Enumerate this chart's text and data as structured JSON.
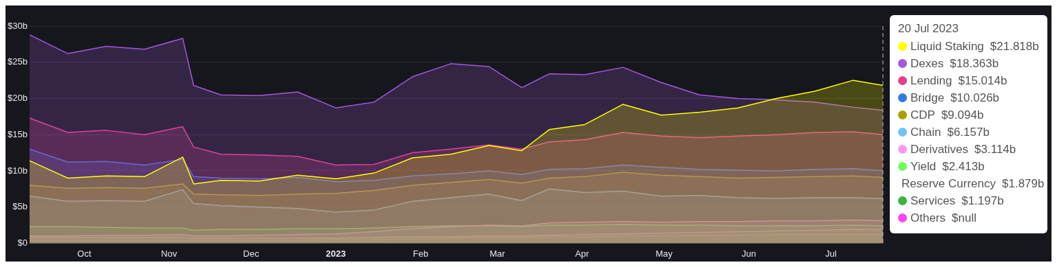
{
  "chart_data": {
    "type": "area",
    "legend_title": "20 Jul 2023",
    "legend": "right",
    "grid": "y",
    "marker": "none",
    "line_style": "solid",
    "x": [
      "2022-09-11",
      "2022-09-25",
      "2022-10-09",
      "2022-10-23",
      "2022-11-06",
      "2022-11-10",
      "2022-11-20",
      "2022-12-04",
      "2022-12-18",
      "2023-01-01",
      "2023-01-15",
      "2023-01-29",
      "2023-02-12",
      "2023-02-26",
      "2023-03-10",
      "2023-03-20",
      "2023-04-02",
      "2023-04-16",
      "2023-04-30",
      "2023-05-14",
      "2023-05-28",
      "2023-06-11",
      "2023-06-25",
      "2023-07-09",
      "2023-07-20"
    ],
    "xlim": [
      "2022-09-11",
      "2023-07-20"
    ],
    "xticks": [
      {
        "value": "2022-10-01",
        "label": "Oct"
      },
      {
        "value": "2022-11-01",
        "label": "Nov"
      },
      {
        "value": "2022-12-01",
        "label": "Dec"
      },
      {
        "value": "2023-01-01",
        "label": "2023"
      },
      {
        "value": "2023-02-01",
        "label": "Feb"
      },
      {
        "value": "2023-03-01",
        "label": "Mar"
      },
      {
        "value": "2023-04-01",
        "label": "Apr"
      },
      {
        "value": "2023-05-01",
        "label": "May"
      },
      {
        "value": "2023-06-01",
        "label": "Jun"
      },
      {
        "value": "2023-07-01",
        "label": "Jul"
      }
    ],
    "ylim": [
      0,
      30
    ],
    "yticks": [
      {
        "value": 0,
        "label": "$0"
      },
      {
        "value": 5,
        "label": "$5b"
      },
      {
        "value": 10,
        "label": "$10b"
      },
      {
        "value": 15,
        "label": "$15b"
      },
      {
        "value": 20,
        "label": "$20b"
      },
      {
        "value": 25,
        "label": "$25b"
      },
      {
        "value": 30,
        "label": "$30b"
      }
    ],
    "annotations": [
      "$21.818b",
      "$18.363b",
      "$15.014b",
      "$10.026b",
      "$9.094b",
      "$6.157b",
      "$3.114b",
      "$2.413b",
      "$1.879b",
      "$1.197b",
      "$null"
    ],
    "ref_lines": [
      {
        "axis": "x",
        "value": "2023-07-20",
        "color": "#bbbbbb",
        "line_style": "dashed"
      }
    ],
    "series": [
      {
        "name": "Liquid Staking",
        "color": "#ffff00",
        "values": [
          11.4,
          9.0,
          9.3,
          9.2,
          11.9,
          8.2,
          8.7,
          8.6,
          9.4,
          8.9,
          9.7,
          11.8,
          12.3,
          13.5,
          12.8,
          15.7,
          16.4,
          19.2,
          17.7,
          18.1,
          18.7,
          20.0,
          21.0,
          22.5,
          21.818
        ]
      },
      {
        "name": "Dexes",
        "color": "#a259d9",
        "values": [
          28.8,
          26.2,
          27.2,
          26.8,
          28.3,
          21.8,
          20.5,
          20.4,
          20.9,
          18.7,
          19.5,
          23.0,
          24.8,
          24.4,
          21.5,
          23.4,
          23.3,
          24.3,
          22.2,
          20.5,
          20.0,
          19.8,
          19.5,
          18.8,
          18.363
        ]
      },
      {
        "name": "Lending",
        "color": "#e83e8c",
        "values": [
          17.3,
          15.3,
          15.6,
          15.0,
          16.1,
          13.3,
          12.3,
          12.2,
          12.0,
          10.8,
          10.9,
          12.5,
          13.0,
          13.6,
          13.0,
          14.0,
          14.3,
          15.3,
          14.8,
          14.6,
          14.8,
          15.0,
          15.3,
          15.4,
          15.014
        ]
      },
      {
        "name": "Bridge",
        "color": "#2f7ae5",
        "values": [
          13.0,
          11.2,
          11.3,
          10.8,
          11.6,
          9.2,
          9.0,
          8.9,
          9.1,
          8.5,
          8.7,
          9.3,
          9.6,
          10.0,
          9.5,
          10.2,
          10.3,
          10.8,
          10.5,
          10.2,
          10.1,
          10.0,
          10.2,
          10.3,
          10.026
        ]
      },
      {
        "name": "CDP",
        "color": "#a8a000",
        "values": [
          8.0,
          7.6,
          7.7,
          7.6,
          8.2,
          6.8,
          6.7,
          6.6,
          6.8,
          6.9,
          7.3,
          8.0,
          8.4,
          8.8,
          8.3,
          9.0,
          9.2,
          9.8,
          9.4,
          9.2,
          9.0,
          9.1,
          9.2,
          9.3,
          9.094
        ]
      },
      {
        "name": "Chain",
        "color": "#6ec6ff",
        "values": [
          6.5,
          5.8,
          5.9,
          5.8,
          7.4,
          5.5,
          5.2,
          5.0,
          4.8,
          4.3,
          4.6,
          5.8,
          6.3,
          6.8,
          5.9,
          7.5,
          7.0,
          7.2,
          6.5,
          6.6,
          6.3,
          6.2,
          6.3,
          6.3,
          6.157
        ]
      },
      {
        "name": "Derivatives",
        "color": "#ff99f0",
        "values": [
          1.0,
          1.0,
          1.1,
          1.1,
          1.2,
          1.0,
          1.0,
          1.1,
          1.2,
          1.3,
          1.6,
          2.0,
          2.3,
          2.5,
          2.4,
          2.8,
          2.9,
          3.0,
          2.9,
          3.0,
          3.0,
          3.1,
          3.1,
          3.2,
          3.114
        ]
      },
      {
        "name": "Yield",
        "color": "#6cff5a",
        "values": [
          2.3,
          2.3,
          2.2,
          2.1,
          2.1,
          1.8,
          1.9,
          1.9,
          2.0,
          2.0,
          2.1,
          2.3,
          2.4,
          2.4,
          2.3,
          2.5,
          2.5,
          2.6,
          2.5,
          2.5,
          2.4,
          2.4,
          2.4,
          2.5,
          2.413
        ]
      },
      {
        "name": "Reserve Currency",
        "color": "#ff8fa0",
        "values": [
          0.8,
          0.8,
          0.8,
          0.8,
          0.8,
          0.7,
          0.7,
          0.7,
          0.7,
          0.7,
          0.8,
          0.9,
          0.9,
          1.0,
          1.0,
          1.1,
          1.2,
          1.3,
          1.4,
          1.5,
          1.6,
          1.7,
          1.8,
          1.9,
          1.879
        ]
      },
      {
        "name": "Services",
        "color": "#3cb33c",
        "values": [
          0.4,
          0.4,
          0.4,
          0.4,
          0.4,
          0.4,
          0.4,
          0.4,
          0.4,
          0.5,
          0.5,
          0.6,
          0.7,
          0.8,
          0.8,
          0.9,
          0.9,
          1.0,
          1.0,
          1.1,
          1.1,
          1.2,
          1.2,
          1.2,
          1.197
        ]
      },
      {
        "name": "Others",
        "color": "#ff44f0",
        "values": [
          null,
          null,
          null,
          null,
          null,
          null,
          null,
          null,
          null,
          null,
          null,
          null,
          null,
          null,
          null,
          null,
          null,
          null,
          null,
          null,
          null,
          null,
          null,
          null,
          null
        ]
      }
    ]
  }
}
